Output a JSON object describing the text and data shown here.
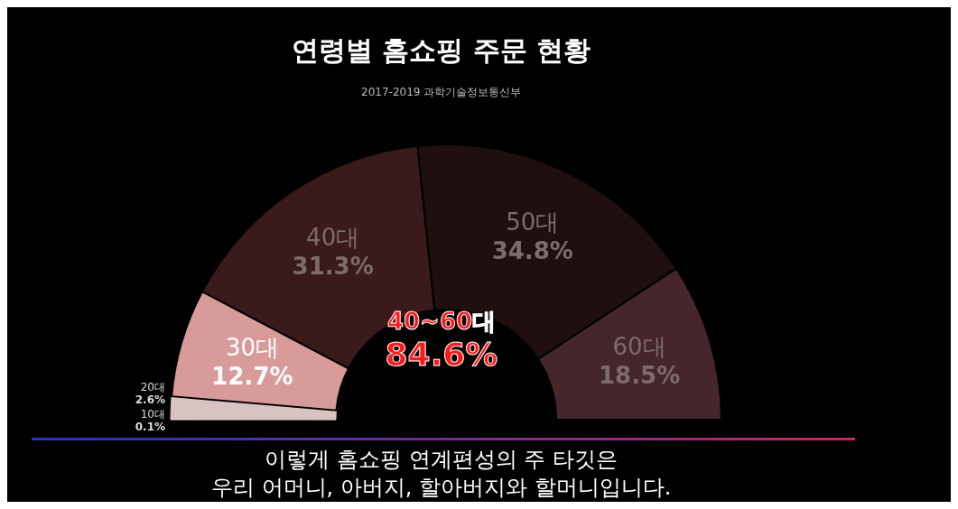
{
  "chart_data": {
    "type": "donut",
    "title": "연령별 홈쇼핑 주문 현황",
    "subtitle": "2017-2019 과학기술정보통신부",
    "categories": [
      "10대",
      "20대",
      "30대",
      "40대",
      "50대",
      "60대"
    ],
    "values": [
      0.1,
      2.6,
      12.7,
      31.3,
      34.8,
      18.5
    ],
    "colors": [
      "#f2e4e4",
      "#d8c2c2",
      "#d99a9a",
      "#3a1a1b",
      "#1f0f0f",
      "#45262a"
    ],
    "value_labels": [
      "0.1%",
      "2.6%",
      "12.7%",
      "31.3%",
      "34.8%",
      "18.5%"
    ],
    "legend": false,
    "annotations": [
      "40~60대\n84.6%",
      "이렇게 홈쇼핑 연계편성의 주 타깃은\n우리 어머니, 아버지, 할아버지와 할머니입니다."
    ]
  }
}
